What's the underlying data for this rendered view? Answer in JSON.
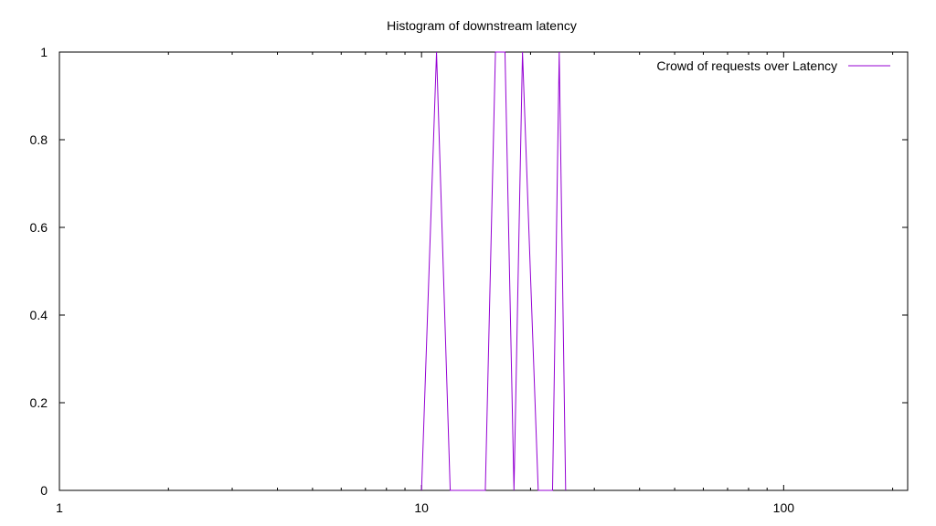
{
  "chart_data": {
    "type": "line",
    "title": "Histogram of downstream latency",
    "xlabel": "",
    "ylabel": "",
    "x_scale": "log",
    "xlim": [
      1,
      220
    ],
    "ylim": [
      0,
      1
    ],
    "x_ticks": [
      {
        "value": 1,
        "label": "1"
      },
      {
        "value": 10,
        "label": "10"
      },
      {
        "value": 100,
        "label": "100"
      }
    ],
    "y_ticks": [
      {
        "value": 0,
        "label": "0"
      },
      {
        "value": 0.2,
        "label": "0.2"
      },
      {
        "value": 0.4,
        "label": "0.4"
      },
      {
        "value": 0.6,
        "label": "0.6"
      },
      {
        "value": 0.8,
        "label": "0.8"
      },
      {
        "value": 1,
        "label": "1"
      }
    ],
    "legend_position": "top-right",
    "grid": false,
    "series": [
      {
        "name": "Crowd of requests over Latency",
        "color": "#9400d3",
        "x": [
          10,
          11,
          12,
          15,
          16,
          17,
          18,
          19,
          21,
          23,
          24,
          25
        ],
        "y": [
          0,
          1,
          0,
          0,
          1,
          1,
          0,
          1,
          0,
          0,
          1,
          0
        ]
      }
    ]
  }
}
